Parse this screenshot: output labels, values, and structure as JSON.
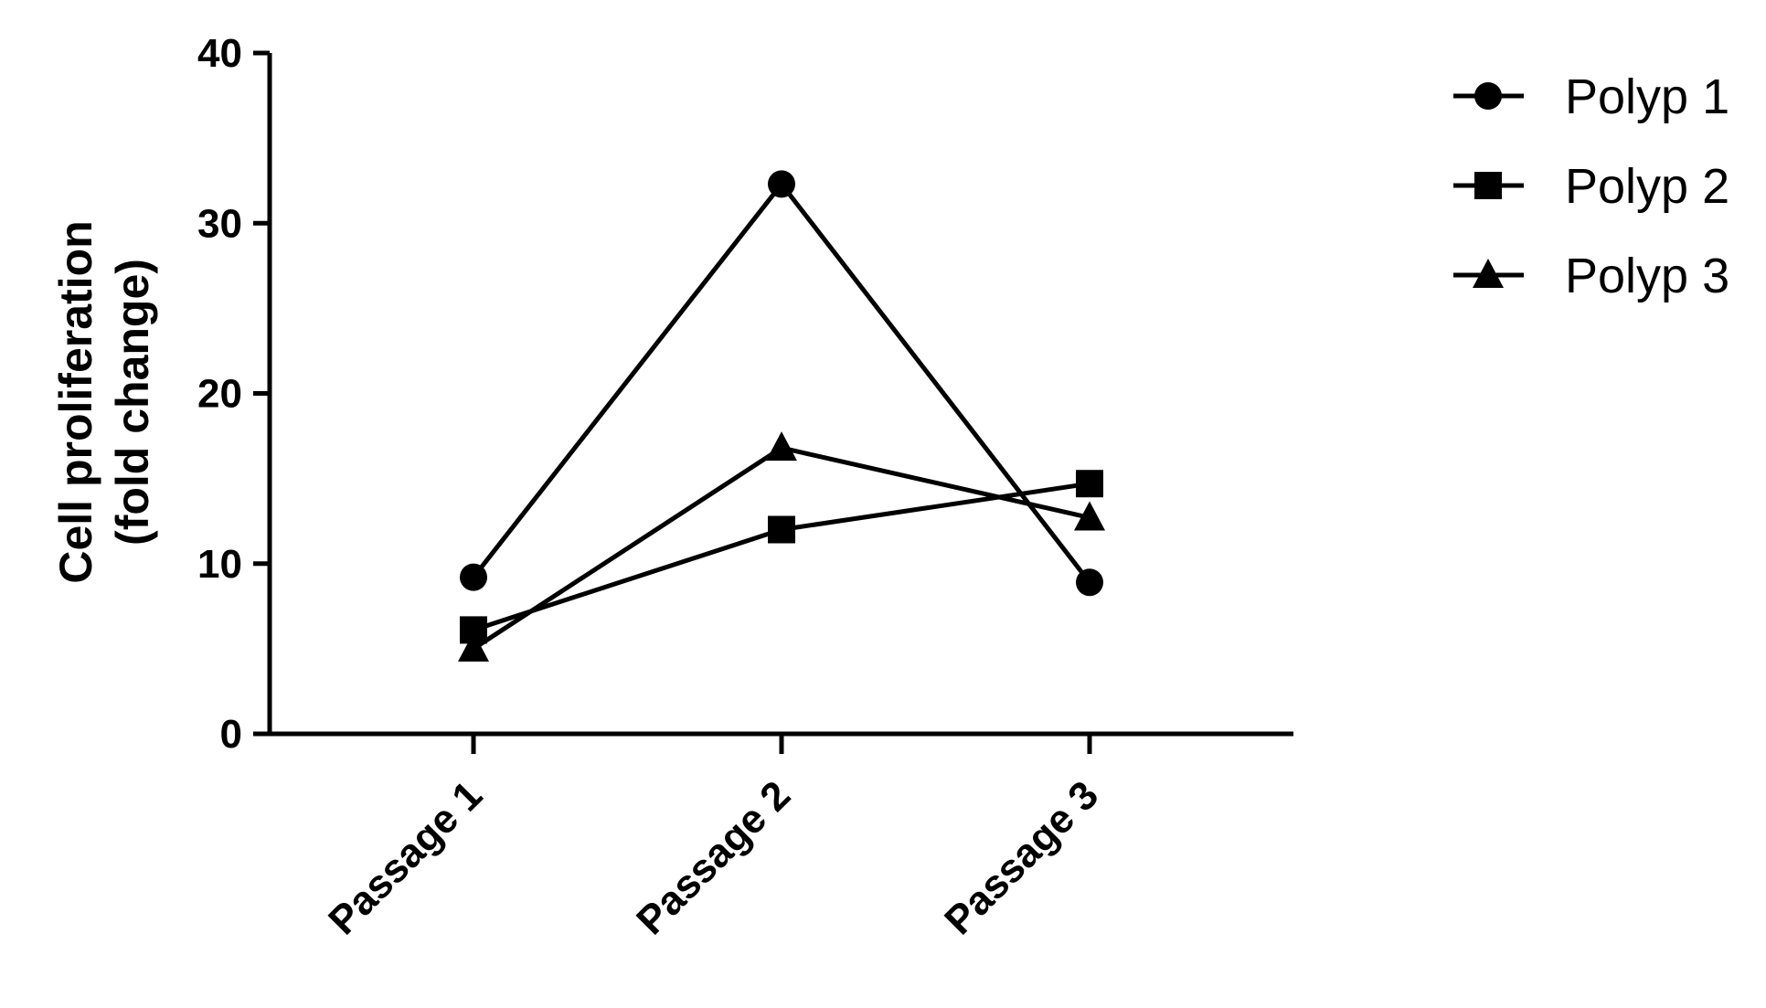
{
  "chart_data": {
    "type": "line",
    "categories": [
      "Passage 1",
      "Passage 2",
      "Passage 3"
    ],
    "ylabel_lines": [
      "Cell proliferation",
      "(fold change)"
    ],
    "xlabel": "",
    "ylim": [
      0,
      40
    ],
    "yticks": [
      0,
      10,
      20,
      30,
      40
    ],
    "grid": false,
    "legend_position": "top-right",
    "series": [
      {
        "name": "Polyp 1",
        "marker": "circle",
        "values": [
          9.2,
          32.3,
          8.9
        ]
      },
      {
        "name": "Polyp 2",
        "marker": "square",
        "values": [
          6.1,
          12.0,
          14.7
        ]
      },
      {
        "name": "Polyp 3",
        "marker": "triangle",
        "values": [
          5.0,
          16.8,
          12.7
        ]
      }
    ],
    "colors": {
      "line": "#000000",
      "marker": "#000000",
      "background": "#ffffff"
    }
  }
}
